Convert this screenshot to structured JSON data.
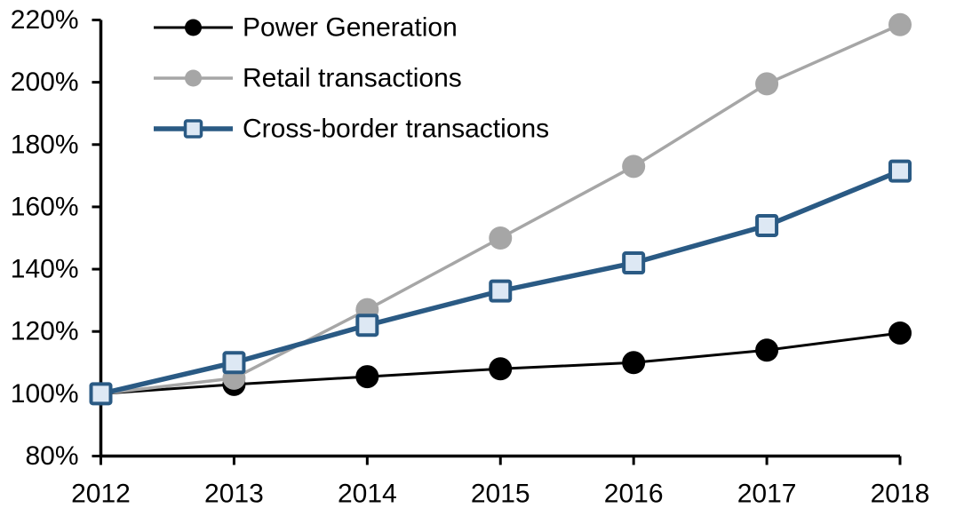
{
  "chart_data": {
    "type": "line",
    "title": "",
    "xlabel": "",
    "ylabel": "",
    "categories": [
      "2012",
      "2013",
      "2014",
      "2015",
      "2016",
      "2017",
      "2018"
    ],
    "series": [
      {
        "name": "Power Generation",
        "values": [
          100,
          103,
          105.5,
          108,
          110,
          114,
          119.5
        ],
        "color": "#000000",
        "marker": "circle",
        "marker_fill": "#000000",
        "line_width": 3
      },
      {
        "name": "Retail transactions",
        "values": [
          100,
          105,
          127,
          150,
          173,
          199.5,
          218.5
        ],
        "color": "#A6A6A6",
        "marker": "circle",
        "marker_fill": "#A6A6A6",
        "line_width": 3.5
      },
      {
        "name": "Cross-border transactions",
        "values": [
          100,
          110,
          122,
          133,
          142,
          154,
          171.5
        ],
        "color": "#2A5A84",
        "marker": "square",
        "marker_fill": "#DDE8F4",
        "line_width": 5.5
      }
    ],
    "ylim": [
      80,
      220
    ],
    "yticks": [
      80,
      100,
      120,
      140,
      160,
      180,
      200,
      220
    ],
    "ytick_labels": [
      "80%",
      "100%",
      "120%",
      "140%",
      "160%",
      "180%",
      "200%",
      "220%"
    ],
    "grid": false,
    "legend_position": "top-left-inside",
    "axis_color": "#000000"
  }
}
